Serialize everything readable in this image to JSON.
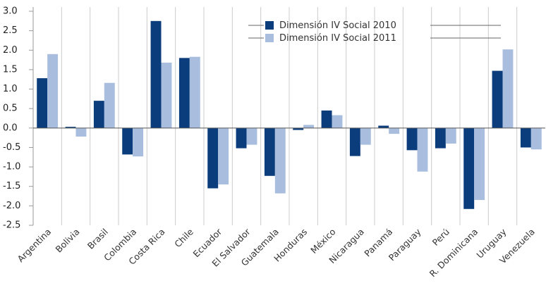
{
  "chart_data": {
    "type": "bar",
    "categories": [
      "Argentina",
      "Bolivia",
      "Brasil",
      "Colombia",
      "Costa Rica",
      "Chile",
      "Ecuador",
      "El Salvador",
      "Guatemala",
      "Honduras",
      "México",
      "Nicaragua",
      "Panamá",
      "Paraguay",
      "Perú",
      "R. Dominicana",
      "Uruguay",
      "Venezuela"
    ],
    "series": [
      {
        "name": "Dimensión IV Social 2010",
        "color": "#0b3d7c",
        "values": [
          1.28,
          0.03,
          0.7,
          -0.68,
          2.75,
          1.8,
          -1.55,
          -0.52,
          -1.23,
          -0.05,
          0.45,
          -0.72,
          0.06,
          -0.57,
          -0.52,
          -2.08,
          1.47,
          -0.5
        ]
      },
      {
        "name": "Dimensión IV Social 2011",
        "color": "#a9bedf",
        "values": [
          1.9,
          -0.22,
          1.16,
          -0.73,
          1.68,
          1.83,
          -1.45,
          -0.43,
          -1.68,
          0.08,
          0.33,
          -0.43,
          -0.15,
          -1.12,
          -0.4,
          -1.85,
          2.02,
          -0.55
        ]
      }
    ],
    "ylim": [
      -2.5,
      3.0
    ],
    "yticks": [
      {
        "value": 3.0,
        "label": "3.0"
      },
      2.5,
      {
        "value": 2.0,
        "label": "2.0"
      },
      1.5,
      {
        "value": 1.0,
        "label": "1.0"
      },
      0.5,
      {
        "value": 0.0,
        "label": "0.0"
      },
      -0.5,
      {
        "value": -1.0,
        "label": "-1.0"
      },
      -1.5,
      {
        "value": -2.0,
        "label": "-2.0"
      },
      -2.5
    ],
    "legend": "top-right"
  }
}
